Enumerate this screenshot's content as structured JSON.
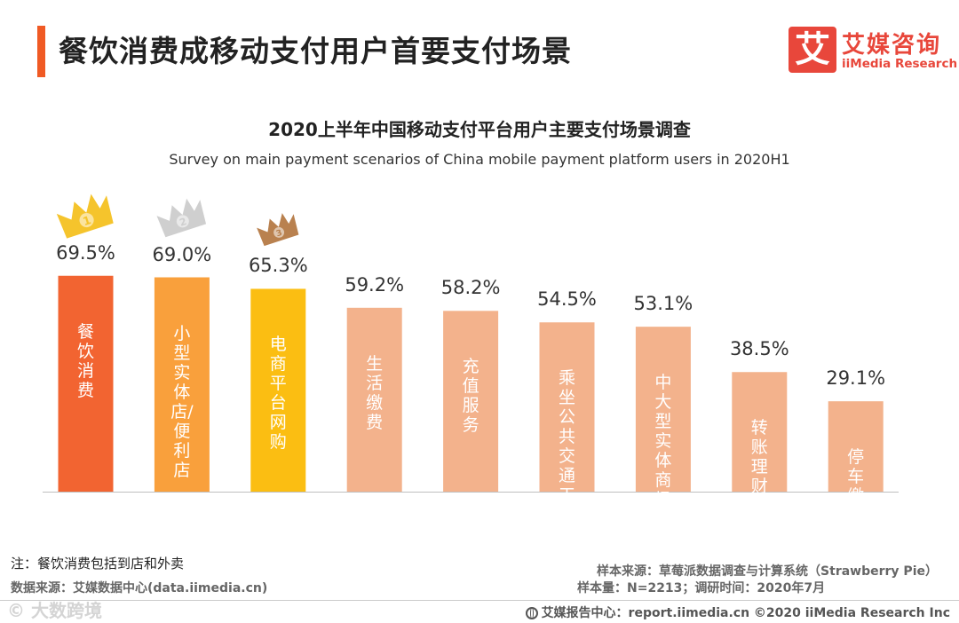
{
  "header": {
    "title": "餐饮消费成移动支付用户首要支付场景",
    "logo_char": "艾",
    "logo_cn": "艾媒咨询",
    "logo_en": "iiMedia Research"
  },
  "chart_data": {
    "type": "bar",
    "title": "2020上半年中国移动支付平台用户主要支付场景调查",
    "subtitle": "Survey on main payment scenarios of China mobile payment platform users in 2020H1",
    "categories": [
      "餐饮消费",
      "小型实体店/便利店",
      "电商平台网购",
      "生活缴费",
      "充值服务",
      "乘坐公共交通工具",
      "中大型实体商场",
      "转账理财还贷",
      "停车缴费"
    ],
    "values": [
      69.5,
      69.0,
      65.3,
      59.2,
      58.2,
      54.5,
      53.1,
      38.5,
      29.1
    ],
    "value_labels": [
      "69.5%",
      "69.0%",
      "65.3%",
      "59.2%",
      "58.2%",
      "54.5%",
      "53.1%",
      "38.5%",
      "29.1%"
    ],
    "unit": "%",
    "ylim": [
      0,
      100
    ],
    "colors": [
      "#f26431",
      "#f9a03c",
      "#fbbe12",
      "#f3b28c",
      "#f3b28c",
      "#f3b28c",
      "#f3b28c",
      "#f3b28c",
      "#f3b28c"
    ],
    "medals": [
      {
        "rank": 1,
        "icon": "gold-crown-icon",
        "color": "#f5c42c"
      },
      {
        "rank": 2,
        "icon": "silver-crown-icon",
        "color": "#cfcfcf"
      },
      {
        "rank": 3,
        "icon": "bronze-crown-icon",
        "color": "#b9814f"
      }
    ]
  },
  "footer": {
    "note": "注：餐饮消费包括到店和外卖",
    "data_source": "数据来源：艾媒数据中心(data.iimedia.cn)",
    "sample_source": "样本来源：草莓派数据调查与计算系统（Strawberry Pie）",
    "sample_size": "样本量：N=2213；调研时间：2020年7月",
    "watermark": "© 大数跨境",
    "copyright": "艾媒报告中心：report.iimedia.cn  ©2020  iiMedia Research  Inc"
  }
}
